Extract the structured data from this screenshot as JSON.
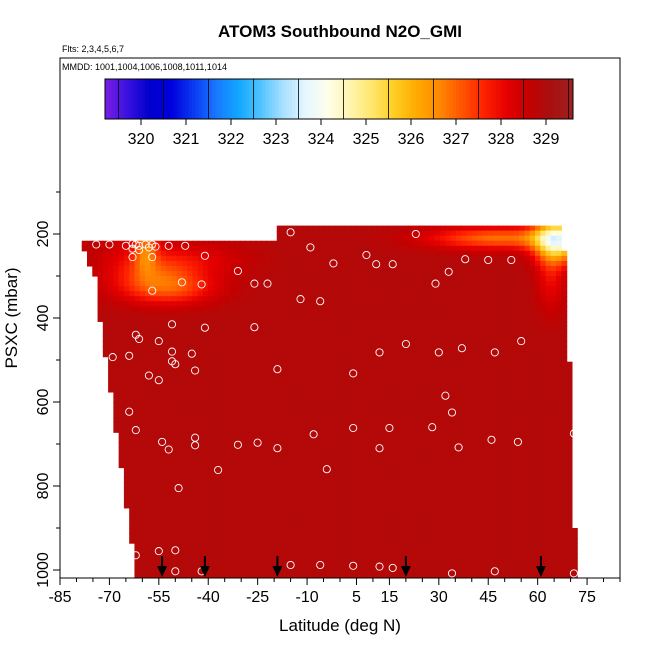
{
  "chart_data": {
    "type": "heatmap",
    "title": "ATOM3 Southbound N2O_GMI",
    "flights_label": "Flts: 2,3,4,5,6,7",
    "dates_label": "MMDD: 1001,1004,1006,1008,1011,1014",
    "xlabel": "Latitude (deg N)",
    "ylabel": "PSXC (mbar)",
    "xlim": [
      -85,
      85
    ],
    "ylim": [
      1000,
      0
    ],
    "x_ticks": [
      -85,
      -70,
      -55,
      -40,
      -25,
      -10,
      5,
      15,
      30,
      45,
      60,
      75
    ],
    "y_ticks": [
      200,
      400,
      600,
      800,
      1000
    ],
    "colorbar": {
      "range": [
        319.2,
        329.6
      ],
      "ticks": [
        320,
        321,
        322,
        323,
        324,
        325,
        326,
        327,
        328,
        329
      ],
      "colors": [
        "#7a1de6",
        "#3a12e0",
        "#0000cc",
        "#0000dd",
        "#0a3cf2",
        "#1a78ff",
        "#10a8ff",
        "#52c4ff",
        "#a8e0ff",
        "#e6f6ff",
        "#ffffea",
        "#fff4b0",
        "#ffe66a",
        "#ffcc22",
        "#ffaa00",
        "#ff8800",
        "#ff5500",
        "#ff2200",
        "#e60000",
        "#c40000",
        "#a81010",
        "#a02020"
      ]
    },
    "flight_markers_lat": [
      -54,
      -41,
      -19,
      20,
      61
    ],
    "samples": [
      {
        "lat": -74,
        "p": 225
      },
      {
        "lat": -70,
        "p": 225
      },
      {
        "lat": -65,
        "p": 228
      },
      {
        "lat": -63,
        "p": 223
      },
      {
        "lat": -62,
        "p": 225
      },
      {
        "lat": -61,
        "p": 228
      },
      {
        "lat": -59,
        "p": 225
      },
      {
        "lat": -58,
        "p": 232
      },
      {
        "lat": -57,
        "p": 225
      },
      {
        "lat": -56,
        "p": 230
      },
      {
        "lat": -52,
        "p": 228
      },
      {
        "lat": -47,
        "p": 228
      },
      {
        "lat": -63,
        "p": 235
      },
      {
        "lat": -61,
        "p": 238
      },
      {
        "lat": -63,
        "p": 255
      },
      {
        "lat": -57,
        "p": 255
      },
      {
        "lat": -41,
        "p": 252
      },
      {
        "lat": -31,
        "p": 288
      },
      {
        "lat": -26,
        "p": 318
      },
      {
        "lat": -22,
        "p": 318
      },
      {
        "lat": -57,
        "p": 335
      },
      {
        "lat": -48,
        "p": 315
      },
      {
        "lat": -42,
        "p": 320
      },
      {
        "lat": -51,
        "p": 415
      },
      {
        "lat": -41,
        "p": 423
      },
      {
        "lat": -26,
        "p": 422
      },
      {
        "lat": -62,
        "p": 440
      },
      {
        "lat": -61,
        "p": 450
      },
      {
        "lat": -55,
        "p": 455
      },
      {
        "lat": -51,
        "p": 480
      },
      {
        "lat": -45,
        "p": 485
      },
      {
        "lat": -69,
        "p": 493
      },
      {
        "lat": -64,
        "p": 490
      },
      {
        "lat": -51,
        "p": 503
      },
      {
        "lat": -50,
        "p": 510
      },
      {
        "lat": -58,
        "p": 537
      },
      {
        "lat": -55,
        "p": 548
      },
      {
        "lat": -44,
        "p": 525
      },
      {
        "lat": -19,
        "p": 522
      },
      {
        "lat": -15,
        "p": 196
      },
      {
        "lat": -9,
        "p": 232
      },
      {
        "lat": -2,
        "p": 270
      },
      {
        "lat": 8,
        "p": 250
      },
      {
        "lat": 11,
        "p": 272
      },
      {
        "lat": 16,
        "p": 272
      },
      {
        "lat": 23,
        "p": 200
      },
      {
        "lat": 29,
        "p": 318
      },
      {
        "lat": 33,
        "p": 290
      },
      {
        "lat": 38,
        "p": 260
      },
      {
        "lat": 45,
        "p": 262
      },
      {
        "lat": 52,
        "p": 262
      },
      {
        "lat": -12,
        "p": 355
      },
      {
        "lat": -6,
        "p": 360
      },
      {
        "lat": 55,
        "p": 455
      },
      {
        "lat": 37,
        "p": 472
      },
      {
        "lat": 30,
        "p": 482
      },
      {
        "lat": 47,
        "p": 482
      },
      {
        "lat": 20,
        "p": 462
      },
      {
        "lat": 12,
        "p": 482
      },
      {
        "lat": 4,
        "p": 532
      },
      {
        "lat": -64,
        "p": 623
      },
      {
        "lat": -62,
        "p": 667
      },
      {
        "lat": -54,
        "p": 695
      },
      {
        "lat": -52,
        "p": 713
      },
      {
        "lat": -44,
        "p": 685
      },
      {
        "lat": -44,
        "p": 703
      },
      {
        "lat": -31,
        "p": 702
      },
      {
        "lat": -25,
        "p": 697
      },
      {
        "lat": -19,
        "p": 710
      },
      {
        "lat": -8,
        "p": 677
      },
      {
        "lat": -4,
        "p": 760
      },
      {
        "lat": 4,
        "p": 662
      },
      {
        "lat": 12,
        "p": 710
      },
      {
        "lat": 15,
        "p": 662
      },
      {
        "lat": 28,
        "p": 660
      },
      {
        "lat": 32,
        "p": 585
      },
      {
        "lat": 34,
        "p": 625
      },
      {
        "lat": 36,
        "p": 708
      },
      {
        "lat": 46,
        "p": 690
      },
      {
        "lat": 54,
        "p": 695
      },
      {
        "lat": 71,
        "p": 675
      },
      {
        "lat": -37,
        "p": 762
      },
      {
        "lat": -49,
        "p": 805
      },
      {
        "lat": -66,
        "p": 950
      },
      {
        "lat": -64,
        "p": 958
      },
      {
        "lat": -62,
        "p": 965
      },
      {
        "lat": -55,
        "p": 955
      },
      {
        "lat": -50,
        "p": 953
      },
      {
        "lat": -64,
        "p": 1000
      },
      {
        "lat": -50,
        "p": 1003
      },
      {
        "lat": -42,
        "p": 1003
      },
      {
        "lat": -15,
        "p": 988
      },
      {
        "lat": -6,
        "p": 988
      },
      {
        "lat": 4,
        "p": 990
      },
      {
        "lat": 12,
        "p": 992
      },
      {
        "lat": 16,
        "p": 995
      },
      {
        "lat": 34,
        "p": 1008
      },
      {
        "lat": 47,
        "p": 1003
      },
      {
        "lat": 71,
        "p": 1008
      },
      {
        "lat": 72,
        "p": 200
      }
    ]
  }
}
